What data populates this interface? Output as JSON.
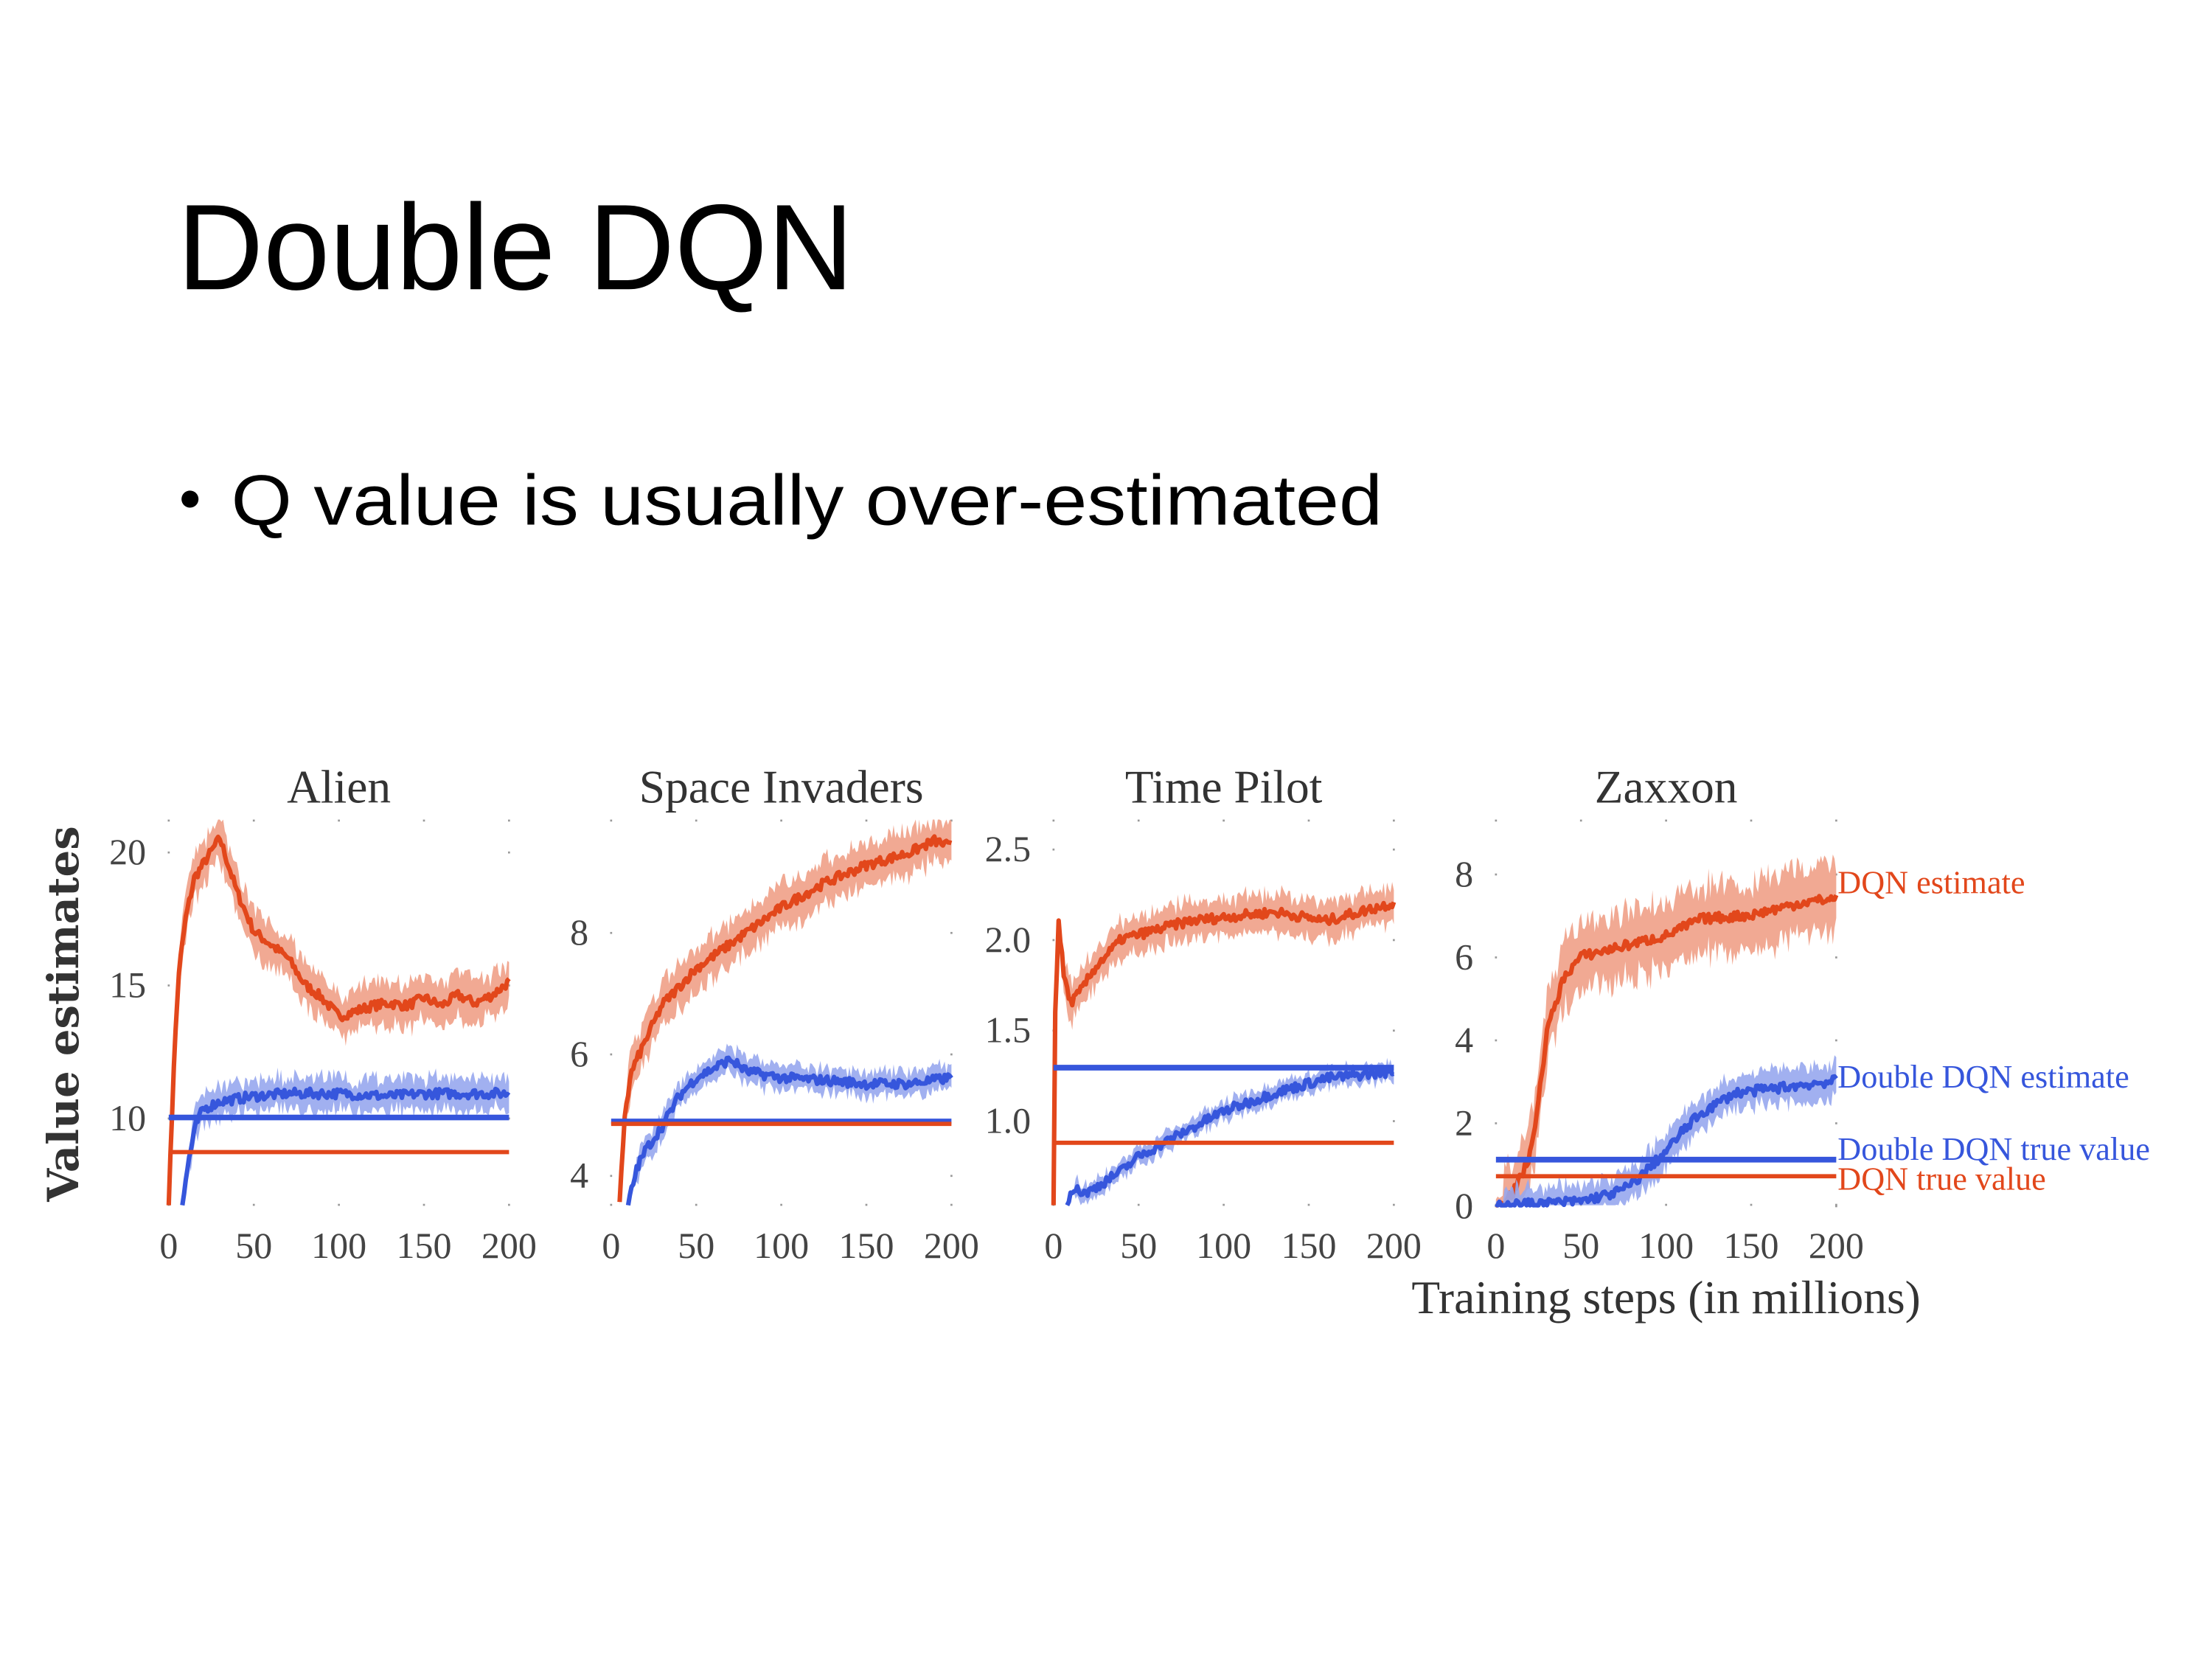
{
  "slide": {
    "title": "Double DQN",
    "bullet": "Q value is usually over-estimated"
  },
  "colors": {
    "dqn": "#E2471B",
    "dqn_band": "#EFA087",
    "ddqn": "#3656DC",
    "ddqn_band": "#97A7EE"
  },
  "chart_data": [
    {
      "type": "line",
      "title": "Alien",
      "ylabel": "Value estimates",
      "xlabel": "",
      "xlim": [
        0,
        200
      ],
      "ylim": [
        6.7,
        21.2
      ],
      "xticks": [
        "0",
        "50",
        "100",
        "150",
        "200"
      ],
      "yticks": [
        20,
        15,
        10
      ],
      "ytick_labels": [
        "20",
        "15",
        "10"
      ],
      "series": [
        {
          "key": "dqn_estimate",
          "x": [
            0,
            3,
            6,
            10,
            15,
            20,
            25,
            30,
            35,
            40,
            50,
            60,
            70,
            80,
            90,
            100,
            110,
            120,
            130,
            140,
            150,
            160,
            170,
            180,
            190,
            200
          ],
          "y": [
            6.7,
            12,
            15.5,
            17.5,
            19,
            19.5,
            20,
            20.5,
            19.5,
            18.5,
            17,
            16.5,
            16,
            15,
            14.5,
            13.8,
            14,
            14.2,
            14.3,
            14.2,
            14.5,
            14.2,
            14.6,
            14.3,
            14.6,
            15.1
          ],
          "band": 0.8
        },
        {
          "key": "ddqn_estimate",
          "x": [
            8,
            12,
            16,
            20,
            30,
            40,
            50,
            70,
            100,
            130,
            150,
            170,
            200
          ],
          "y": [
            6.7,
            8.5,
            9.7,
            10.3,
            10.6,
            10.7,
            10.8,
            10.9,
            10.9,
            10.8,
            10.9,
            10.9,
            10.9
          ],
          "band": 0.6
        },
        {
          "key": "ddqn_true",
          "value": 10.0
        },
        {
          "key": "dqn_true",
          "value": 8.7
        }
      ]
    },
    {
      "type": "line",
      "title": "Space Invaders",
      "xlabel": "",
      "xlim": [
        0,
        200
      ],
      "ylim": [
        3.5,
        9.85
      ],
      "xticks": [
        "0",
        "50",
        "100",
        "150",
        "200"
      ],
      "yticks": [
        8,
        6,
        4
      ],
      "ytick_labels": [
        "8",
        "6",
        "4"
      ],
      "series": [
        {
          "key": "dqn_estimate",
          "x": [
            5,
            8,
            12,
            20,
            30,
            40,
            50,
            75,
            100,
            125,
            150,
            175,
            190,
            200
          ],
          "y": [
            3.5,
            5,
            5.7,
            6.2,
            6.8,
            7.1,
            7.4,
            7.9,
            8.4,
            8.8,
            9.1,
            9.3,
            9.5,
            9.4
          ],
          "band": 0.35
        },
        {
          "key": "ddqn_estimate",
          "x": [
            10,
            15,
            20,
            30,
            40,
            50,
            60,
            70,
            80,
            100,
            130,
            150,
            175,
            200
          ],
          "y": [
            3.5,
            4.1,
            4.4,
            4.8,
            5.3,
            5.6,
            5.75,
            5.9,
            5.7,
            5.6,
            5.55,
            5.5,
            5.5,
            5.6
          ],
          "band": 0.2
        },
        {
          "key": "ddqn_true",
          "value": 4.88
        },
        {
          "key": "dqn_true",
          "value": 4.84
        }
      ]
    },
    {
      "type": "line",
      "title": "Time Pilot",
      "xlabel": "",
      "xlim": [
        0,
        200
      ],
      "ylim": [
        0.53,
        2.66
      ],
      "xticks": [
        "0",
        "50",
        "100",
        "150",
        "200"
      ],
      "yticks": [
        2.5,
        2.0,
        1.5,
        1.0
      ],
      "ytick_labels": [
        "2.5",
        "2.0",
        "1.5",
        "1.0"
      ],
      "series": [
        {
          "key": "dqn_estimate",
          "x": [
            0,
            1,
            3,
            6,
            10,
            15,
            25,
            40,
            60,
            80,
            100,
            130,
            160,
            180,
            200
          ],
          "y": [
            0.53,
            1.6,
            2.1,
            1.8,
            1.65,
            1.7,
            1.85,
            2.0,
            2.05,
            2.1,
            2.12,
            2.15,
            2.1,
            2.15,
            2.2
          ],
          "band": 0.1
        },
        {
          "key": "ddqn_estimate",
          "x": [
            8,
            10,
            20,
            30,
            40,
            50,
            70,
            100,
            130,
            160,
            200
          ],
          "y": [
            0.53,
            0.62,
            0.6,
            0.66,
            0.72,
            0.8,
            0.9,
            1.05,
            1.15,
            1.23,
            1.27
          ],
          "band": 0.05
        },
        {
          "key": "ddqn_true",
          "value": 1.29
        },
        {
          "key": "dqn_true",
          "value": 0.875
        }
      ]
    },
    {
      "type": "line",
      "title": "Zaxxon",
      "xlabel": "Training steps (in millions)",
      "xlim": [
        0,
        200
      ],
      "ylim": [
        0,
        9.3
      ],
      "xticks": [
        "0",
        "50",
        "100",
        "150",
        "200"
      ],
      "yticks": [
        8,
        6,
        4,
        2,
        0
      ],
      "ytick_labels": [
        "8",
        "6",
        "4",
        "2",
        "0"
      ],
      "series": [
        {
          "key": "dqn_estimate",
          "name": "DQN estimate",
          "x": [
            0,
            10,
            15,
            20,
            25,
            30,
            40,
            50,
            70,
            100,
            120,
            150,
            180,
            200
          ],
          "y": [
            0,
            0.3,
            0.7,
            1.2,
            2.5,
            4.2,
            5.5,
            6.0,
            6.2,
            6.5,
            6.9,
            7.0,
            7.3,
            7.4
          ],
          "band": 0.8
        },
        {
          "key": "ddqn_estimate",
          "name": "Double DQN estimate",
          "x": [
            0,
            30,
            50,
            70,
            80,
            90,
            100,
            110,
            120,
            140,
            160,
            180,
            200
          ],
          "y": [
            0,
            0.05,
            0.1,
            0.3,
            0.5,
            0.9,
            1.3,
            1.8,
            2.2,
            2.7,
            2.8,
            2.9,
            3.0
          ],
          "band": 0.4
        },
        {
          "key": "ddqn_true",
          "name": "Double DQN true value",
          "value": 1.1
        },
        {
          "key": "dqn_true",
          "name": "DQN true value",
          "value": 0.7
        }
      ]
    }
  ]
}
